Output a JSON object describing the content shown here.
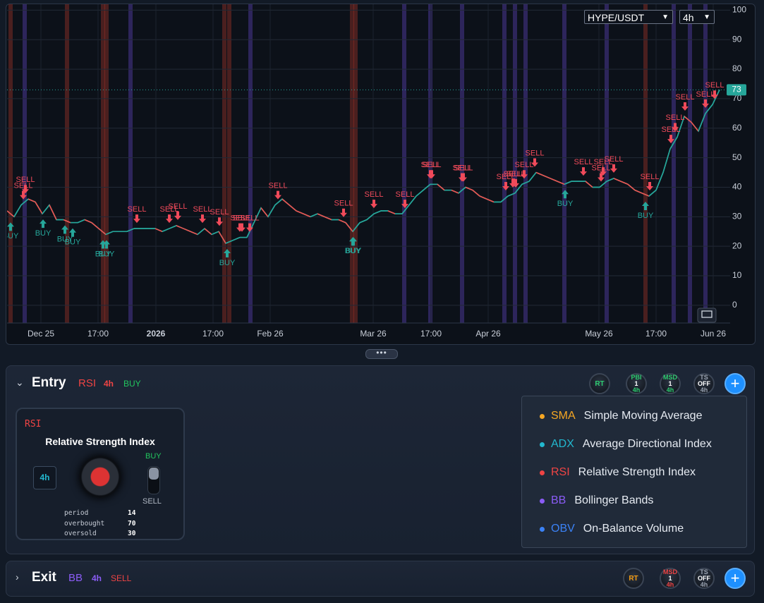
{
  "controls": {
    "pair": "HYPE/USDT",
    "interval": "4h"
  },
  "chart_data": {
    "type": "line",
    "color": "#26a69a",
    "values": [
      32,
      30,
      34,
      36,
      35,
      31,
      34,
      29,
      29,
      28,
      28,
      29,
      28,
      26,
      24,
      25,
      25,
      25,
      26,
      26,
      26,
      26,
      25,
      26,
      27,
      26,
      25,
      24,
      26,
      24,
      25,
      21,
      22,
      23,
      23,
      28,
      33,
      30,
      34,
      36,
      34,
      32,
      31,
      30,
      31,
      30,
      29,
      29,
      28,
      25,
      28,
      29,
      31,
      32,
      32,
      31,
      31,
      34,
      37,
      39,
      41,
      41,
      39,
      39,
      38,
      40,
      39,
      37,
      36,
      35,
      35,
      37,
      38,
      41,
      42,
      45,
      44,
      43,
      42,
      41,
      42,
      42,
      42,
      40,
      40,
      42,
      43,
      42,
      41,
      39,
      38,
      37,
      39,
      45,
      53,
      57,
      64,
      62,
      59,
      65,
      68,
      73
    ],
    "xlim": [
      0,
      102.5
    ],
    "xticks": [
      {
        "value": 4.8,
        "label": "Dec 25"
      },
      {
        "value": 12.9,
        "label": "17:00"
      },
      {
        "value": 21.1,
        "label": "2026"
      },
      {
        "value": 29.2,
        "label": "17:00"
      },
      {
        "value": 37.3,
        "label": "Feb 26"
      },
      {
        "value": 51.9,
        "label": "Mar 26"
      },
      {
        "value": 60.1,
        "label": "17:00"
      },
      {
        "value": 68.2,
        "label": "Apr 26"
      },
      {
        "value": 83.9,
        "label": "May 26"
      },
      {
        "value": 92,
        "label": "17:00"
      },
      {
        "value": 100.1,
        "label": "Jun 26"
      }
    ],
    "ylim": [
      -6,
      102
    ],
    "yticks": [
      0,
      10,
      20,
      30,
      40,
      50,
      60,
      70,
      80,
      90,
      100
    ],
    "grid": true,
    "last_value": 73,
    "bands": [
      {
        "x": 0.5,
        "color": "#c0392b"
      },
      {
        "x": 2.5,
        "color": "#6c4bd6"
      },
      {
        "x": 8.5,
        "color": "#c0392b"
      },
      {
        "x": 13.6,
        "color": "#c0392b"
      },
      {
        "x": 14.1,
        "color": "#c0392b"
      },
      {
        "x": 17.5,
        "color": "#6c4bd6"
      },
      {
        "x": 30.8,
        "color": "#c0392b"
      },
      {
        "x": 31.5,
        "color": "#c0392b"
      },
      {
        "x": 34.5,
        "color": "#6c4bd6"
      },
      {
        "x": 48.9,
        "color": "#c0392b"
      },
      {
        "x": 49.4,
        "color": "#c0392b"
      },
      {
        "x": 56.3,
        "color": "#6c4bd6"
      },
      {
        "x": 60,
        "color": "#6c4bd6"
      },
      {
        "x": 64.5,
        "color": "#6c4bd6"
      },
      {
        "x": 70.5,
        "color": "#6c4bd6"
      },
      {
        "x": 72,
        "color": "#6c4bd6"
      },
      {
        "x": 73.5,
        "color": "#6c4bd6"
      },
      {
        "x": 79,
        "color": "#6c4bd6"
      },
      {
        "x": 85,
        "color": "#6c4bd6"
      },
      {
        "x": 90.5,
        "color": "#c0392b"
      },
      {
        "x": 94.5,
        "color": "#6c4bd6"
      },
      {
        "x": 96.8,
        "color": "#6c4bd6"
      },
      {
        "x": 99,
        "color": "#6c4bd6"
      }
    ],
    "signals": [
      {
        "x": 0.5,
        "label": "BUY"
      },
      {
        "x": 5.1,
        "label": "BUY"
      },
      {
        "x": 8.2,
        "label": "BUY"
      },
      {
        "x": 9.3,
        "label": "BUY"
      },
      {
        "x": 13.6,
        "label": "BUY"
      },
      {
        "x": 14.1,
        "label": "BUY"
      },
      {
        "x": 31.2,
        "label": "BUY"
      },
      {
        "x": 49,
        "label": "BUY"
      },
      {
        "x": 49.1,
        "label": "BUY"
      },
      {
        "x": 79.1,
        "label": "BUY"
      },
      {
        "x": 90.5,
        "label": "BUY"
      },
      {
        "x": 2.3,
        "label": "SELL"
      },
      {
        "x": 2.6,
        "label": "SELL"
      },
      {
        "x": 18.4,
        "label": "SELL"
      },
      {
        "x": 23,
        "label": "SELL"
      },
      {
        "x": 24.2,
        "label": "SELL"
      },
      {
        "x": 27.7,
        "label": "SELL"
      },
      {
        "x": 30.1,
        "label": "SELL"
      },
      {
        "x": 33,
        "label": "SELL"
      },
      {
        "x": 33.3,
        "label": "SELL"
      },
      {
        "x": 34.4,
        "label": "SELL"
      },
      {
        "x": 38.4,
        "label": "SELL"
      },
      {
        "x": 47.7,
        "label": "SELL"
      },
      {
        "x": 52,
        "label": "SELL"
      },
      {
        "x": 56.4,
        "label": "SELL"
      },
      {
        "x": 60,
        "label": "SELL"
      },
      {
        "x": 60.2,
        "label": "SELL"
      },
      {
        "x": 64.5,
        "label": "SELL"
      },
      {
        "x": 64.7,
        "label": "SELL"
      },
      {
        "x": 70.7,
        "label": "SELL"
      },
      {
        "x": 71.7,
        "label": "SELL"
      },
      {
        "x": 72.1,
        "label": "SELL"
      },
      {
        "x": 73.3,
        "label": "SELL"
      },
      {
        "x": 74.8,
        "label": "SELL"
      },
      {
        "x": 81.7,
        "label": "SELL"
      },
      {
        "x": 84.2,
        "label": "SELL"
      },
      {
        "x": 84.5,
        "label": "SELL"
      },
      {
        "x": 86,
        "label": "SELL"
      },
      {
        "x": 91.1,
        "label": "SELL"
      },
      {
        "x": 94.1,
        "label": "SELL"
      },
      {
        "x": 94.7,
        "label": "SELL"
      },
      {
        "x": 96.1,
        "label": "SELL"
      },
      {
        "x": 99,
        "label": "SELL"
      },
      {
        "x": 100.3,
        "label": "SELL"
      }
    ]
  },
  "entry": {
    "title": "Entry",
    "indicator": "RSI",
    "interval": "4h",
    "side": "BUY",
    "badges": [
      {
        "lines": [
          "RT"
        ],
        "color": "#2ecc71"
      },
      {
        "lines": [
          "PBI",
          "1",
          "4h"
        ],
        "color": "#2ecc71"
      },
      {
        "lines": [
          "MSD",
          "1",
          "4h"
        ],
        "color": "#2ecc71"
      },
      {
        "lines": [
          "TS",
          "OFF",
          "4h"
        ],
        "color": "#9aa3b2"
      }
    ],
    "card": {
      "code": "RSI",
      "name": "Relative Strength Index",
      "interval": "4h",
      "on": "BUY",
      "off": "SELL",
      "params": [
        [
          "period",
          14
        ],
        [
          "overbought",
          70
        ],
        [
          "oversold",
          30
        ]
      ]
    },
    "menu": [
      {
        "code": "SMA",
        "name": "Simple Moving Average",
        "color": "#f5a623"
      },
      {
        "code": "ADX",
        "name": "Average Directional Index",
        "color": "#22b8cf"
      },
      {
        "code": "RSI",
        "name": "Relative Strength Index",
        "color": "#ef4444"
      },
      {
        "code": "BB",
        "name": "Bollinger Bands",
        "color": "#8b5cf6"
      },
      {
        "code": "OBV",
        "name": "On-Balance Volume",
        "color": "#3b82f6"
      }
    ]
  },
  "exit": {
    "title": "Exit",
    "indicator": "BB",
    "interval": "4h",
    "side": "SELL",
    "badges": [
      {
        "lines": [
          "RT"
        ],
        "color": "#f39c12"
      },
      {
        "lines": [
          "MSD",
          "1",
          "4h"
        ],
        "color": "#ef4444"
      },
      {
        "lines": [
          "TS",
          "OFF",
          "4h"
        ],
        "color": "#9aa3b2"
      }
    ]
  }
}
